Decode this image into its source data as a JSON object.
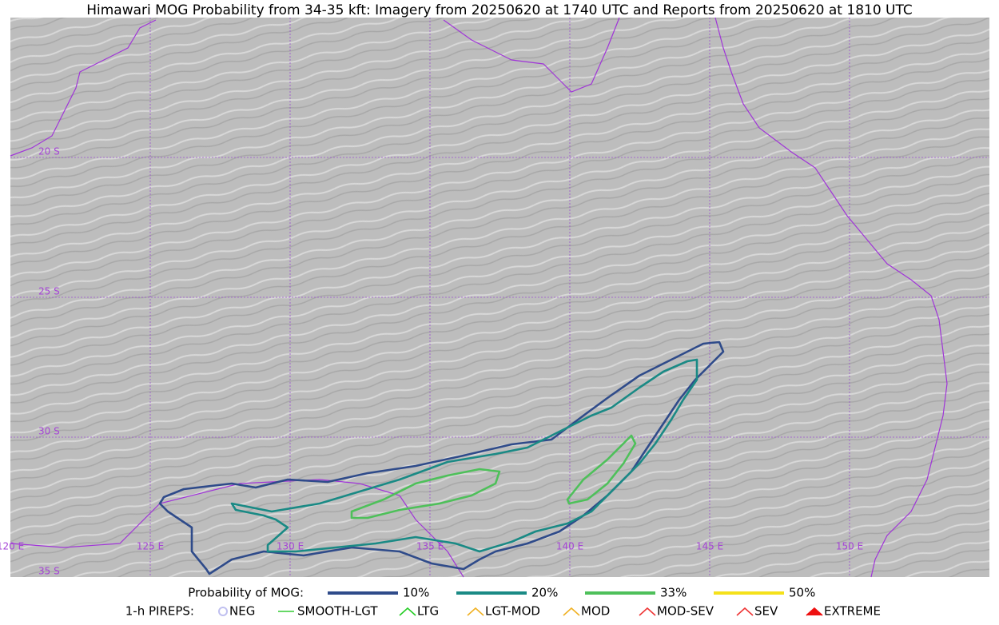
{
  "header": {
    "title": "Himawari MOG Probability from 34-35 kft: Imagery from 20250620 at 1740 UTC and Reports from 20250620 at 1810 UTC"
  },
  "map": {
    "lat_labels": [
      "20 S",
      "25 S",
      "30 S",
      "35 S"
    ],
    "lon_labels": [
      "120 E",
      "125 E",
      "130 E",
      "135 E",
      "140 E",
      "145 E",
      "150 E"
    ]
  },
  "legend": {
    "probability_title": "Probability of MOG:",
    "probability_items": [
      "10%",
      "20%",
      "33%",
      "50%"
    ],
    "pireps_title": "1-h PIREPS:",
    "pireps_items": [
      "NEG",
      "SMOOTH-LGT",
      "LTG",
      "LGT-MOD",
      "MOD",
      "MOD-SEV",
      "SEV",
      "EXTREME"
    ]
  }
}
